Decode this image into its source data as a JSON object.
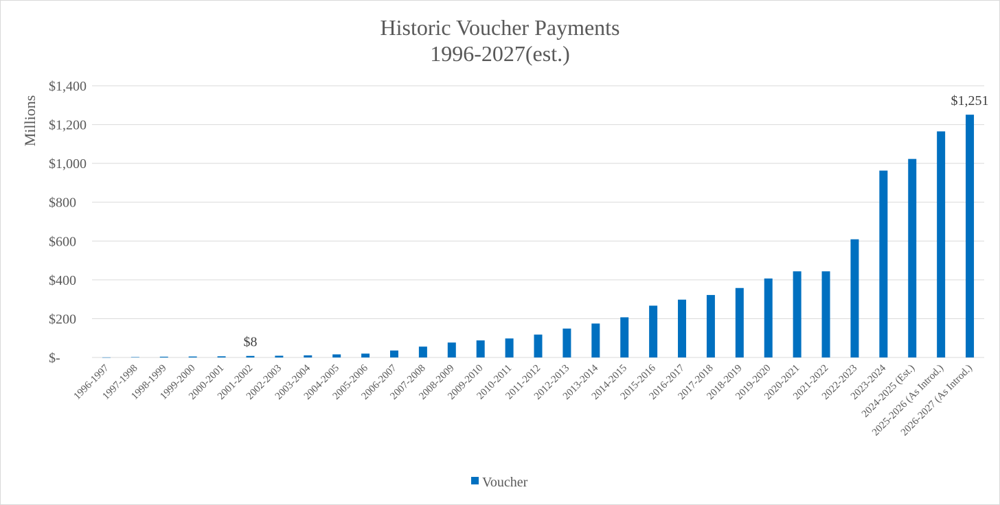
{
  "chart_data": {
    "type": "bar",
    "title": "Historic Voucher Payments",
    "subtitle": "1996-2027(est.)",
    "ylabel": "Millions",
    "xlabel": "",
    "ylim": [
      0,
      1400
    ],
    "y_ticks": [
      {
        "value": 0,
        "label": "$-"
      },
      {
        "value": 200,
        "label": "$200"
      },
      {
        "value": 400,
        "label": "$400"
      },
      {
        "value": 600,
        "label": "$600"
      },
      {
        "value": 800,
        "label": "$800"
      },
      {
        "value": 1000,
        "label": "$1,000"
      },
      {
        "value": 1200,
        "label": "$1,200"
      },
      {
        "value": 1400,
        "label": "$1,400"
      }
    ],
    "grid": true,
    "legend_position": "bottom",
    "bar_color": "#0070C0",
    "categories": [
      "1996-1997",
      "1997-1998",
      "1998-1999",
      "1999-2000",
      "2000-2001",
      "2001-2002",
      "2002-2003",
      "2003-2004",
      "2004-2005",
      "2005-2006",
      "2006-2007",
      "2007-2008",
      "2008-2009",
      "2009-2010",
      "2010-2011",
      "2011-2012",
      "2012-2013",
      "2013-2014",
      "2014-2015",
      "2015-2016",
      "2016-2017",
      "2017-2018",
      "2018-2019",
      "2019-2020",
      "2020-2021",
      "2021-2022",
      "2022-2023",
      "2023-2024",
      "2024-2025 (Est.)",
      "2025-2026 (As Introd.)",
      "2026-2027 (As Introd.)"
    ],
    "series": [
      {
        "name": "Voucher",
        "values": [
          0.5,
          2,
          4,
          5,
          6,
          8,
          9,
          11,
          16,
          20,
          36,
          56,
          77,
          88,
          98,
          118,
          149,
          175,
          207,
          267,
          298,
          322,
          358,
          407,
          444,
          444,
          609,
          963,
          1023,
          1165,
          1251
        ]
      }
    ],
    "data_labels": [
      {
        "category_index": 5,
        "text": "$8"
      },
      {
        "category_index": 30,
        "text": "$1,251"
      }
    ]
  }
}
